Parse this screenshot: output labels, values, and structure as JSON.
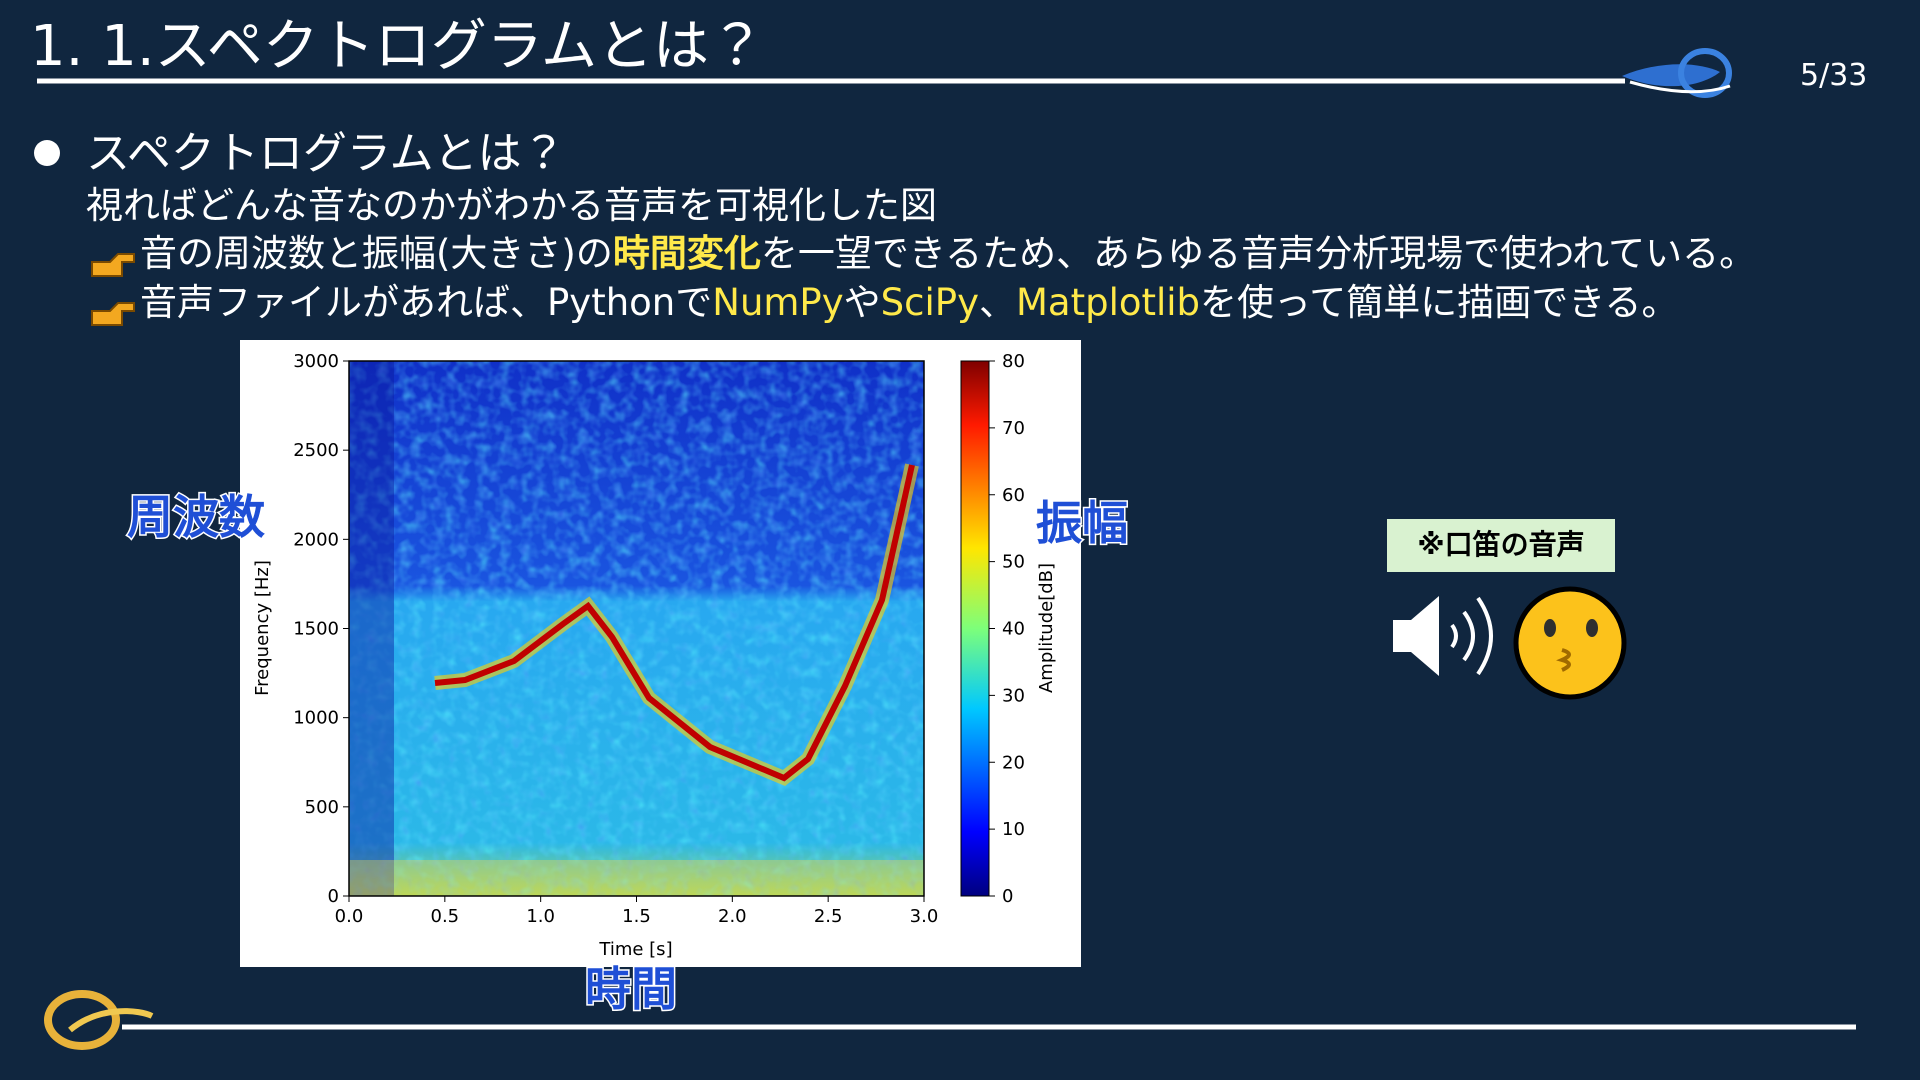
{
  "header": {
    "title": "1. 1.スペクトログラムとは？",
    "page": "5/33"
  },
  "bullet": {
    "heading": "スペクトログラムとは？",
    "text": "視ればどんな音なのかがわかる音声を可視化した図",
    "points": [
      [
        "音の周波数と振幅(大きさ)の",
        "時間変化",
        "を一望できるため、あらゆる音声分析現場で使われている。"
      ],
      [
        "音声ファイルがあれば、Pythonで",
        "NumPy",
        "や",
        "SciPy",
        "、",
        "Matplotlib",
        "を使って簡単に描画できる。"
      ]
    ]
  },
  "chart_data": {
    "type": "spectrogram",
    "xlabel": "Time [s]",
    "ylabel": "Frequency [Hz]",
    "xlim": [
      0,
      3
    ],
    "xticks": [
      {
        "value": 0,
        "label": "0.0"
      },
      {
        "value": 0.5,
        "label": "0.5"
      },
      {
        "value": 1,
        "label": "1.0"
      },
      {
        "value": 1.5,
        "label": "1.5"
      },
      {
        "value": 2,
        "label": "2.0"
      },
      {
        "value": 2.5,
        "label": "2.5"
      },
      {
        "value": 3,
        "label": "3.0"
      }
    ],
    "ylim": [
      0,
      3000
    ],
    "yticks": [
      0,
      500,
      1000,
      1500,
      2000,
      2500,
      3000
    ],
    "colorbar": {
      "label": "Amplitude[dB]",
      "lim": [
        0,
        80
      ],
      "ticks": [
        0,
        10,
        20,
        30,
        40,
        50,
        60,
        70,
        80
      ]
    }
  },
  "annotations": {
    "frequency": "周波数",
    "amplitude": "振幅",
    "time": "時間",
    "note": "※口笛の音声"
  }
}
